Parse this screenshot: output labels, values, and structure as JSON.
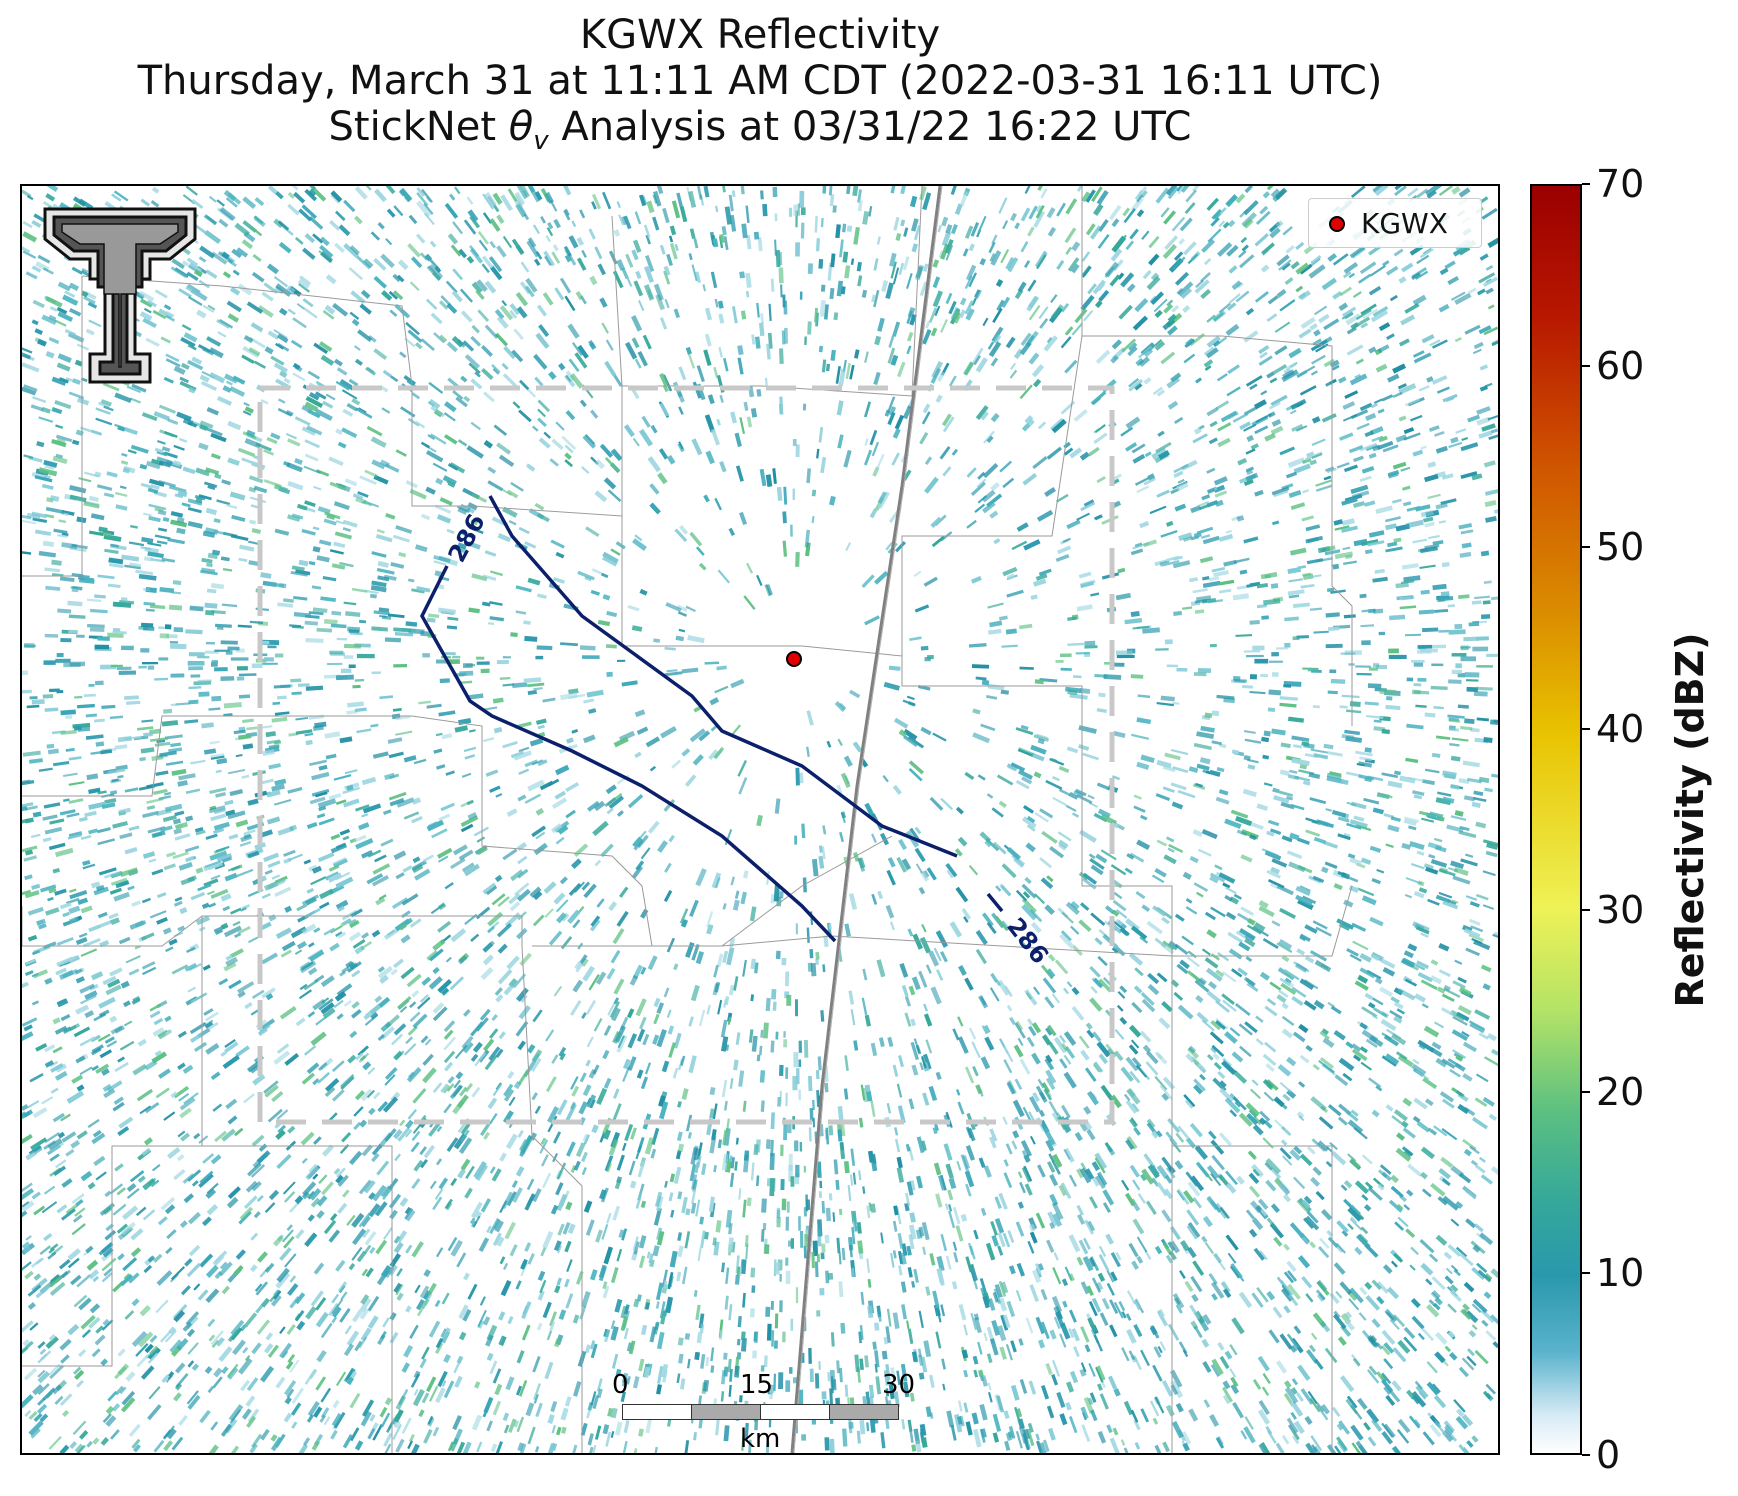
{
  "title": {
    "line1": "KGWX Reflectivity",
    "line2": "Thursday, March 31 at 11:11 AM CDT (2022-03-31 16:11 UTC)",
    "line3_prefix": "StickNet ",
    "line3_theta": "θ",
    "line3_sub": "v",
    "line3_suffix": " Analysis at 03/31/22 16:22 UTC"
  },
  "legend": {
    "label": "KGWX",
    "marker_color": "#e00000"
  },
  "colorbar": {
    "label": "Reflectivity (dBZ)",
    "ticks": [
      "0",
      "10",
      "20",
      "30",
      "40",
      "50",
      "60",
      "70"
    ],
    "range": [
      0,
      70
    ]
  },
  "contour": {
    "label_1": "286",
    "label_2": "286",
    "color": "#0b1f6b"
  },
  "scalebar": {
    "labels": [
      "0",
      "15",
      "30"
    ],
    "unit": "km"
  },
  "colors": {
    "reflectivity_base": "#2a98ac",
    "domain_box": "#c8c8c8",
    "road": "#808080"
  },
  "icons": {
    "logo": "texas-tech-double-t-logo",
    "radar_site": "radar-site-marker-icon"
  }
}
